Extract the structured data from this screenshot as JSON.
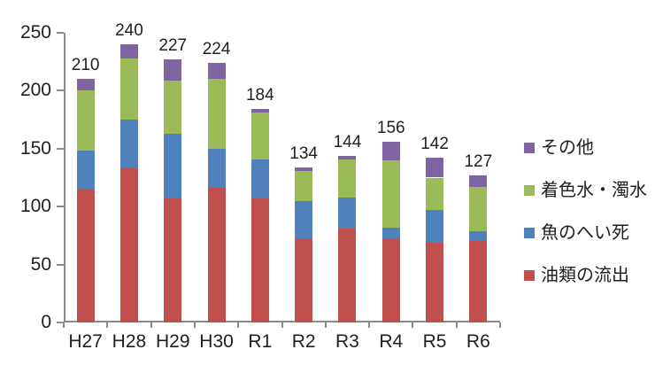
{
  "chart_data": {
    "type": "bar",
    "stacked": true,
    "categories": [
      "H27",
      "H28",
      "H29",
      "H30",
      "R1",
      "R2",
      "R3",
      "R4",
      "R5",
      "R6"
    ],
    "series": [
      {
        "name": "油類の流出",
        "color": "#C0504D",
        "values": [
          115,
          134,
          107,
          116,
          107,
          72,
          81,
          73,
          69,
          70
        ]
      },
      {
        "name": "魚のへい死",
        "color": "#4F81BD",
        "values": [
          33,
          41,
          56,
          34,
          34,
          33,
          27,
          9,
          28,
          9
        ]
      },
      {
        "name": "着色水・濁水",
        "color": "#9BBB59",
        "values": [
          52,
          53,
          46,
          60,
          40,
          26,
          33,
          58,
          28,
          38
        ]
      },
      {
        "name": "その他",
        "color": "#8064A2",
        "values": [
          10,
          12,
          18,
          14,
          3,
          3,
          3,
          16,
          17,
          10
        ]
      }
    ],
    "totals": [
      210,
      240,
      227,
      224,
      184,
      134,
      144,
      156,
      142,
      127
    ],
    "y_axis": {
      "min": 0,
      "max": 250,
      "step": 50,
      "tick_labels": [
        "0",
        "50",
        "100",
        "150",
        "200",
        "250"
      ]
    },
    "legend": {
      "position": "right",
      "entries": [
        "その他",
        "着色水・濁水",
        "魚のへい死",
        "油類の流出"
      ]
    },
    "grid": false,
    "title": ""
  }
}
